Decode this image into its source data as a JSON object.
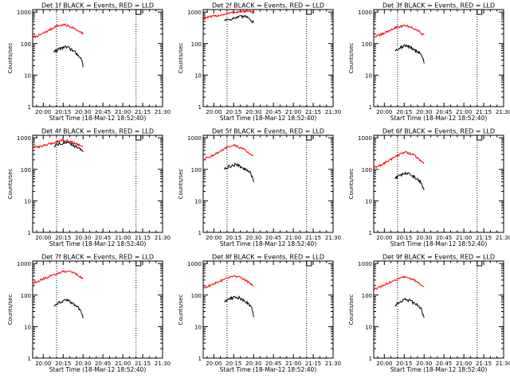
{
  "figure": {
    "background": "#ffffff",
    "axis_color": "#000000",
    "events_color": "#000000",
    "lld_color": "#ff0000"
  },
  "chart_data": [
    {
      "type": "line",
      "title": "Det 1f BLACK = Events, RED = LLD",
      "xlabel": "Start Time (18-Mar-12 18:52:40)",
      "ylabel": "Counts/sec",
      "yscale": "log",
      "ylim": [
        1,
        1200
      ],
      "xlim": [
        "19:52",
        "21:30"
      ],
      "x_ticks": [
        "20:00",
        "20:15",
        "20:30",
        "20:45",
        "21:00",
        "21:15",
        "21:30"
      ],
      "y_ticks": [
        "1",
        "10",
        "100",
        "1000"
      ],
      "vlines": [
        "20:10",
        "21:10"
      ],
      "marker_top": "21:10",
      "series": [
        {
          "name": "LLD",
          "color": "#ff0000",
          "x": [
            "19:52",
            "19:58",
            "20:04",
            "20:10",
            "20:16",
            "20:22",
            "20:26",
            "20:30"
          ],
          "y": [
            155,
            190,
            260,
            360,
            395,
            330,
            250,
            205
          ]
        },
        {
          "name": "Events",
          "color": "#000000",
          "x": [
            "20:08",
            "20:12",
            "20:16",
            "20:20",
            "20:24",
            "20:28",
            "20:30"
          ],
          "y": [
            55,
            68,
            78,
            70,
            52,
            38,
            20
          ]
        }
      ]
    },
    {
      "type": "line",
      "title": "Det 2f BLACK = Events, RED = LLD",
      "xlabel": "Start Time (18-Mar-12 18:52:40)",
      "ylabel": "Counts/sec",
      "yscale": "log",
      "ylim": [
        1,
        1200
      ],
      "xlim": [
        "19:52",
        "21:30"
      ],
      "x_ticks": [
        "20:00",
        "20:15",
        "20:30",
        "20:45",
        "21:00",
        "21:15",
        "21:30"
      ],
      "y_ticks": [
        "1",
        "10",
        "100",
        "1000"
      ],
      "vlines": [
        "20:10",
        "21:10"
      ],
      "marker_top": "21:10",
      "series": [
        {
          "name": "LLD",
          "color": "#ff0000",
          "x": [
            "19:52",
            "20:00",
            "20:08",
            "20:16",
            "20:24",
            "20:30"
          ],
          "y": [
            650,
            730,
            850,
            1000,
            1050,
            1000
          ]
        },
        {
          "name": "Events",
          "color": "#000000",
          "x": [
            "20:08",
            "20:14",
            "20:20",
            "20:26",
            "20:30"
          ],
          "y": [
            560,
            620,
            700,
            720,
            450
          ]
        }
      ]
    },
    {
      "type": "line",
      "title": "Det 3f BLACK = Events, RED = LLD",
      "xlabel": "Start Time (18-Mar-12 18:52:40)",
      "ylabel": "Counts/sec",
      "yscale": "log",
      "ylim": [
        1,
        1200
      ],
      "xlim": [
        "19:52",
        "21:30"
      ],
      "x_ticks": [
        "20:00",
        "20:15",
        "20:30",
        "20:45",
        "21:00",
        "21:15",
        "21:30"
      ],
      "y_ticks": [
        "1",
        "10",
        "100",
        "1000"
      ],
      "vlines": [
        "20:10",
        "21:10"
      ],
      "marker_top": "21:10",
      "series": [
        {
          "name": "LLD",
          "color": "#ff0000",
          "x": [
            "19:52",
            "19:58",
            "20:04",
            "20:10",
            "20:16",
            "20:22",
            "20:26",
            "20:30"
          ],
          "y": [
            160,
            195,
            260,
            340,
            370,
            310,
            240,
            185
          ]
        },
        {
          "name": "Events",
          "color": "#000000",
          "x": [
            "20:08",
            "20:12",
            "20:16",
            "20:20",
            "20:24",
            "20:28",
            "20:30"
          ],
          "y": [
            60,
            75,
            85,
            75,
            60,
            45,
            25
          ]
        }
      ]
    },
    {
      "type": "line",
      "title": "Det 4f BLACK = Events, RED = LLD",
      "xlabel": "Start Time (18-Mar-12 18:52:40)",
      "ylabel": "Counts/sec",
      "yscale": "log",
      "ylim": [
        1,
        1200
      ],
      "xlim": [
        "19:52",
        "21:30"
      ],
      "x_ticks": [
        "20:00",
        "20:15",
        "20:30",
        "20:45",
        "21:00",
        "21:15",
        "21:30"
      ],
      "y_ticks": [
        "1",
        "10",
        "100",
        "1000"
      ],
      "vlines": [
        "20:10",
        "21:10"
      ],
      "marker_top": "21:10",
      "series": [
        {
          "name": "LLD",
          "color": "#ff0000",
          "x": [
            "19:52",
            "20:00",
            "20:08",
            "20:14",
            "20:20",
            "20:26",
            "20:30"
          ],
          "y": [
            480,
            560,
            700,
            850,
            780,
            620,
            520
          ]
        },
        {
          "name": "Events",
          "color": "#000000",
          "x": [
            "20:08",
            "20:12",
            "20:16",
            "20:20",
            "20:24",
            "20:28",
            "20:30"
          ],
          "y": [
            560,
            660,
            720,
            650,
            540,
            440,
            330
          ]
        }
      ]
    },
    {
      "type": "line",
      "title": "Det 5f BLACK = Events, RED = LLD",
      "xlabel": "Start Time (18-Mar-12 18:52:40)",
      "ylabel": "Counts/sec",
      "yscale": "log",
      "ylim": [
        1,
        1200
      ],
      "xlim": [
        "19:52",
        "21:30"
      ],
      "x_ticks": [
        "20:00",
        "20:15",
        "20:30",
        "20:45",
        "21:00",
        "21:15",
        "21:30"
      ],
      "y_ticks": [
        "1",
        "10",
        "100",
        "1000"
      ],
      "vlines": [
        "20:10",
        "21:10"
      ],
      "marker_top": "21:10",
      "series": [
        {
          "name": "LLD",
          "color": "#ff0000",
          "x": [
            "19:52",
            "19:58",
            "20:04",
            "20:10",
            "20:16",
            "20:22",
            "20:26",
            "20:30"
          ],
          "y": [
            210,
            260,
            350,
            490,
            570,
            450,
            340,
            270
          ]
        },
        {
          "name": "Events",
          "color": "#000000",
          "x": [
            "20:08",
            "20:12",
            "20:16",
            "20:20",
            "20:24",
            "20:28",
            "20:30"
          ],
          "y": [
            100,
            125,
            140,
            125,
            100,
            75,
            40
          ]
        }
      ]
    },
    {
      "type": "line",
      "title": "Det 6f BLACK = Events, RED = LLD",
      "xlabel": "Start Time (18-Mar-12 18:52:40)",
      "ylabel": "Counts/sec",
      "yscale": "log",
      "ylim": [
        1,
        1200
      ],
      "xlim": [
        "19:52",
        "21:30"
      ],
      "x_ticks": [
        "20:00",
        "20:15",
        "20:30",
        "20:45",
        "21:00",
        "21:15",
        "21:30"
      ],
      "y_ticks": [
        "1",
        "10",
        "100",
        "1000"
      ],
      "vlines": [
        "20:10",
        "21:10"
      ],
      "marker_top": "21:10",
      "series": [
        {
          "name": "LLD",
          "color": "#ff0000",
          "x": [
            "19:52",
            "19:58",
            "20:04",
            "20:10",
            "20:16",
            "20:22",
            "20:26",
            "20:30"
          ],
          "y": [
            110,
            140,
            195,
            280,
            350,
            290,
            210,
            150
          ]
        },
        {
          "name": "Events",
          "color": "#000000",
          "x": [
            "20:08",
            "20:12",
            "20:16",
            "20:20",
            "20:24",
            "20:28",
            "20:30"
          ],
          "y": [
            50,
            65,
            75,
            65,
            52,
            38,
            20
          ]
        }
      ]
    },
    {
      "type": "line",
      "title": "Det 7f BLACK = Events, RED = LLD",
      "xlabel": "Start Time (18-Mar-12 18:52:40)",
      "ylabel": "Counts/sec",
      "yscale": "log",
      "ylim": [
        1,
        1200
      ],
      "xlim": [
        "19:52",
        "21:30"
      ],
      "x_ticks": [
        "20:00",
        "20:15",
        "20:30",
        "20:45",
        "21:00",
        "21:15",
        "21:30"
      ],
      "y_ticks": [
        "1",
        "10",
        "100",
        "1000"
      ],
      "vlines": [
        "20:10",
        "21:10"
      ],
      "marker_top": "21:10",
      "series": [
        {
          "name": "LLD",
          "color": "#ff0000",
          "x": [
            "19:52",
            "19:58",
            "20:04",
            "20:10",
            "20:16",
            "20:22",
            "20:26",
            "20:30"
          ],
          "y": [
            240,
            300,
            380,
            480,
            560,
            520,
            420,
            330
          ]
        },
        {
          "name": "Events",
          "color": "#000000",
          "x": [
            "20:08",
            "20:12",
            "20:16",
            "20:20",
            "20:24",
            "20:28",
            "20:30"
          ],
          "y": [
            45,
            58,
            70,
            62,
            48,
            35,
            18
          ]
        }
      ]
    },
    {
      "type": "line",
      "title": "Det 8f BLACK = Events, RED = LLD",
      "xlabel": "Start Time (18-Mar-12 18:52:40)",
      "ylabel": "Counts/sec",
      "yscale": "log",
      "ylim": [
        1,
        1200
      ],
      "xlim": [
        "19:52",
        "21:30"
      ],
      "x_ticks": [
        "20:00",
        "20:15",
        "20:30",
        "20:45",
        "21:00",
        "21:15",
        "21:30"
      ],
      "y_ticks": [
        "1",
        "10",
        "100",
        "1000"
      ],
      "vlines": [
        "20:10",
        "21:10"
      ],
      "marker_top": "21:10",
      "series": [
        {
          "name": "LLD",
          "color": "#ff0000",
          "x": [
            "19:52",
            "19:58",
            "20:04",
            "20:10",
            "20:16",
            "20:22",
            "20:26",
            "20:30"
          ],
          "y": [
            170,
            205,
            270,
            360,
            410,
            340,
            260,
            200
          ]
        },
        {
          "name": "Events",
          "color": "#000000",
          "x": [
            "20:08",
            "20:12",
            "20:16",
            "20:20",
            "20:24",
            "20:28",
            "20:30"
          ],
          "y": [
            62,
            78,
            88,
            80,
            62,
            45,
            22
          ]
        }
      ]
    },
    {
      "type": "line",
      "title": "Det 9f BLACK = Events, RED = LLD",
      "xlabel": "Start Time (18-Mar-12 18:52:40)",
      "ylabel": "Counts/sec",
      "yscale": "log",
      "ylim": [
        1,
        1200
      ],
      "xlim": [
        "19:52",
        "21:30"
      ],
      "x_ticks": [
        "20:00",
        "20:15",
        "20:30",
        "20:45",
        "21:00",
        "21:15",
        "21:30"
      ],
      "y_ticks": [
        "1",
        "10",
        "100",
        "1000"
      ],
      "vlines": [
        "20:10",
        "21:10"
      ],
      "marker_top": "21:10",
      "series": [
        {
          "name": "LLD",
          "color": "#ff0000",
          "x": [
            "19:52",
            "19:58",
            "20:04",
            "20:10",
            "20:16",
            "20:22",
            "20:26",
            "20:30"
          ],
          "y": [
            150,
            190,
            250,
            330,
            370,
            310,
            240,
            190
          ]
        },
        {
          "name": "Events",
          "color": "#000000",
          "x": [
            "20:08",
            "20:12",
            "20:16",
            "20:20",
            "20:24",
            "20:28",
            "20:30"
          ],
          "y": [
            48,
            62,
            72,
            65,
            50,
            36,
            18
          ]
        }
      ]
    }
  ]
}
